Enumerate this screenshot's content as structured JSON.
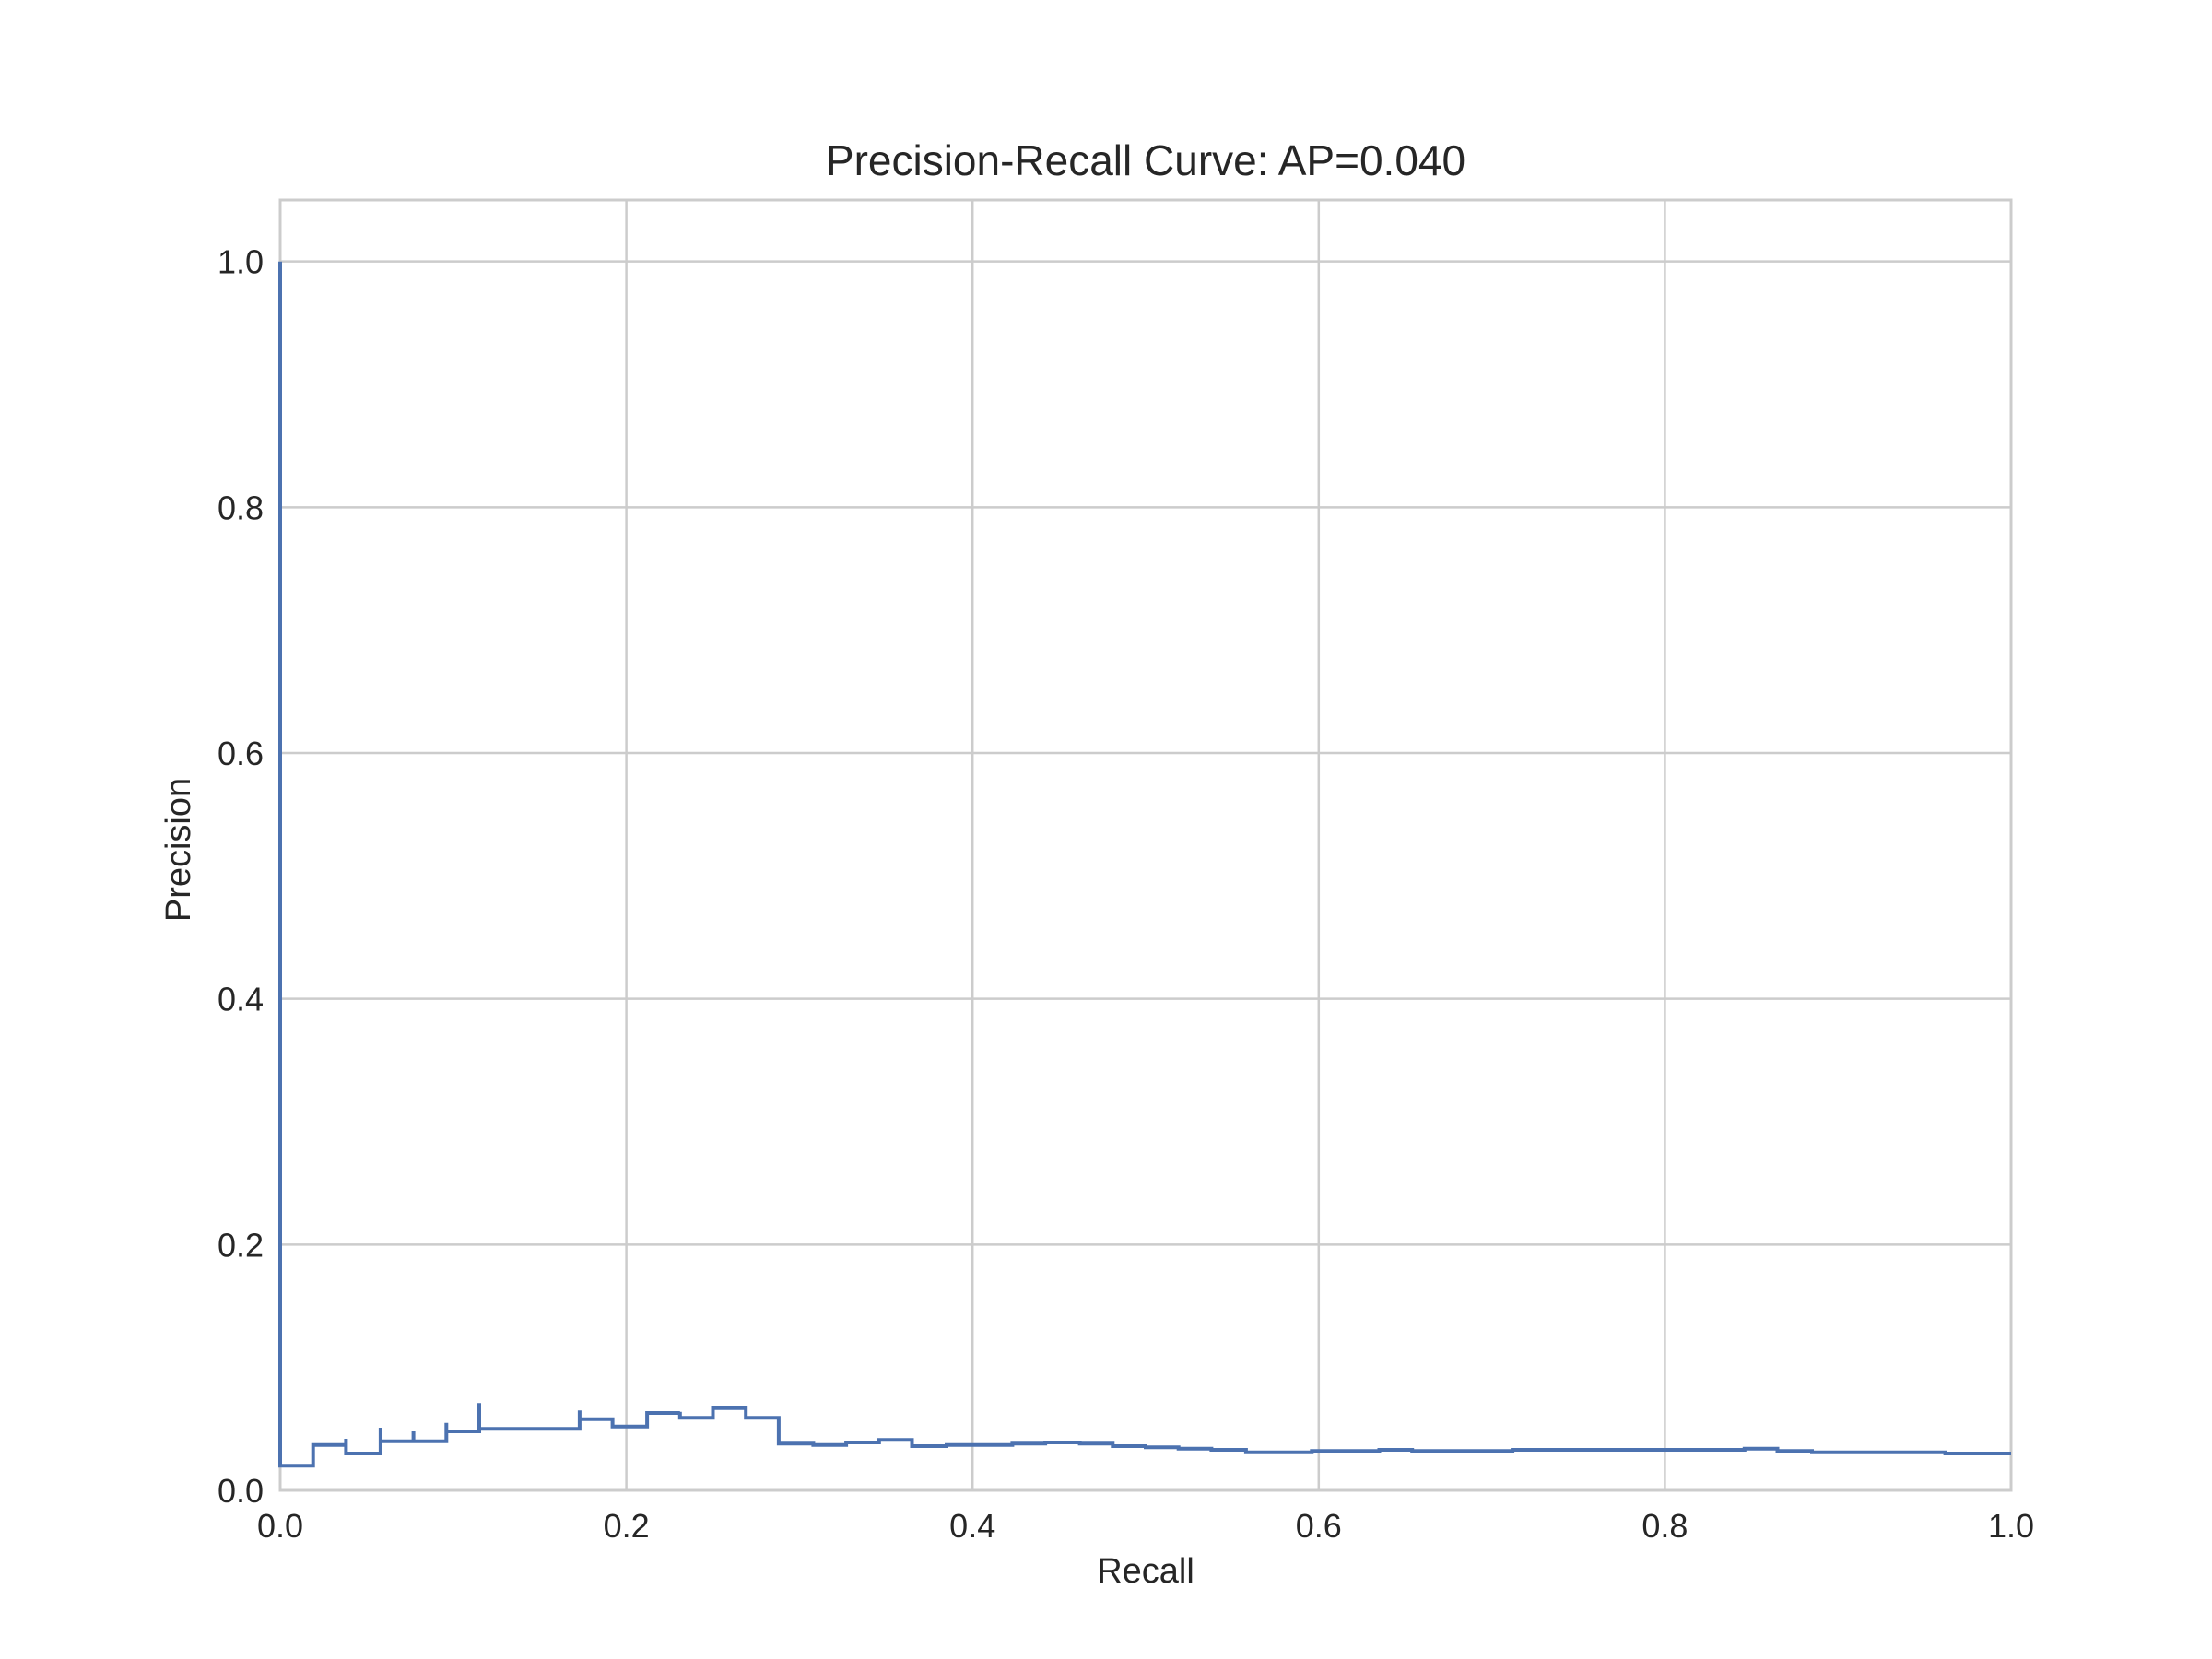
{
  "chart_data": {
    "type": "line",
    "title": "Precision-Recall Curve: AP=0.040",
    "xlabel": "Recall",
    "ylabel": "Precision",
    "xlim": [
      0.0,
      1.0
    ],
    "ylim": [
      0.0,
      1.05
    ],
    "xticks": [
      "0.0",
      "0.2",
      "0.4",
      "0.6",
      "0.8",
      "1.0"
    ],
    "yticks": [
      "0.0",
      "0.2",
      "0.4",
      "0.6",
      "0.8",
      "1.0"
    ],
    "grid": true,
    "step": "post",
    "series": [
      {
        "color": "#4c72b0",
        "recall": [
          0.0,
          0.0,
          0.019,
          0.038,
          0.038,
          0.058,
          0.058,
          0.077,
          0.077,
          0.096,
          0.096,
          0.115,
          0.115,
          0.173,
          0.173,
          0.192,
          0.192,
          0.212,
          0.231,
          0.231,
          0.25,
          0.269,
          0.269,
          0.288,
          0.308,
          0.327,
          0.346,
          0.365,
          0.385,
          0.404,
          0.423,
          0.442,
          0.462,
          0.481,
          0.5,
          0.519,
          0.538,
          0.558,
          0.577,
          0.596,
          0.615,
          0.635,
          0.654,
          0.673,
          0.692,
          0.712,
          0.731,
          0.75,
          0.769,
          0.788,
          0.808,
          0.827,
          0.846,
          0.865,
          0.885,
          0.904,
          0.923,
          0.942,
          0.962,
          0.981,
          1.0
        ],
        "precision": [
          1.0,
          0.02,
          0.037,
          0.042,
          0.03,
          0.051,
          0.04,
          0.048,
          0.04,
          0.055,
          0.048,
          0.071,
          0.05,
          0.065,
          0.058,
          0.058,
          0.052,
          0.063,
          0.064,
          0.059,
          0.067,
          0.066,
          0.059,
          0.038,
          0.037,
          0.039,
          0.041,
          0.036,
          0.037,
          0.037,
          0.038,
          0.039,
          0.038,
          0.036,
          0.035,
          0.034,
          0.033,
          0.031,
          0.031,
          0.032,
          0.032,
          0.033,
          0.032,
          0.032,
          0.032,
          0.033,
          0.033,
          0.033,
          0.033,
          0.033,
          0.033,
          0.033,
          0.034,
          0.032,
          0.031,
          0.031,
          0.031,
          0.031,
          0.03,
          0.03,
          0.03
        ]
      }
    ]
  }
}
